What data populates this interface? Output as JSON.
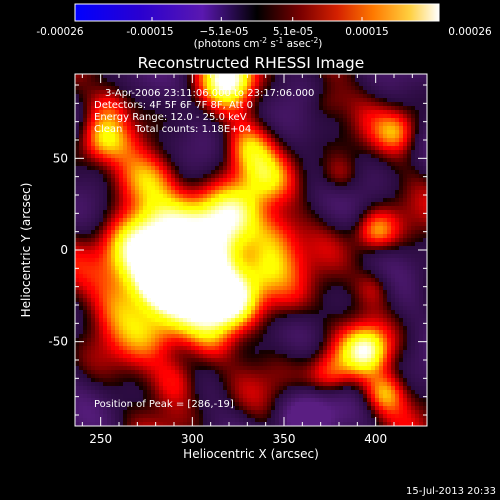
{
  "colorbar": {
    "tick_labels": [
      "-0.00026",
      "-0.00015",
      "−5.1e-05",
      "5.1e-05",
      "0.00015",
      "0.00026"
    ],
    "tick_values": [
      -0.00026,
      -0.00015,
      -5.1e-05,
      5.1e-05,
      0.00015,
      0.00026
    ],
    "range": [
      -0.00026,
      0.00026
    ],
    "units_prefix": "(photons cm",
    "units_sup1": "-2",
    "units_mid": " s",
    "units_sup2": "-1",
    "units_mid2": " asec",
    "units_sup3": "-2",
    "units_suffix": ")"
  },
  "title": "Reconstructed RHESSI Image",
  "info": {
    "line1": "3-Apr-2006 23:11:06.000 to 23:17:06.000",
    "line2": "Detectors: 4F 5F 6F 7F 8F, Att 0",
    "line3": "Energy Range: 12.0 - 25.0 keV",
    "line4": "Clean    Total counts: 1.18E+04"
  },
  "peak_label": "Position of Peak = [286,-19]",
  "footer_date": "15-Jul-2013 20:33",
  "chart_data": {
    "type": "heatmap",
    "title": "Reconstructed RHESSI Image",
    "xlabel": "Heliocentric X (arcsec)",
    "ylabel": "Heliocentric Y (arcsec)",
    "xlim": [
      236,
      428
    ],
    "ylim": [
      -96,
      96
    ],
    "xticks": [
      250,
      300,
      350,
      400
    ],
    "yticks": [
      -50,
      0,
      50
    ],
    "colormap": "hot",
    "blobs": [
      {
        "x": 286,
        "y": -18,
        "amp": 1.0,
        "w": 9
      },
      {
        "x": 278,
        "y": -12,
        "amp": 0.7,
        "w": 14
      },
      {
        "x": 265,
        "y": -2,
        "amp": 0.5,
        "w": 14
      },
      {
        "x": 280,
        "y": 10,
        "amp": 0.45,
        "w": 13
      },
      {
        "x": 310,
        "y": 15,
        "amp": 0.6,
        "w": 14
      },
      {
        "x": 325,
        "y": 20,
        "amp": 0.55,
        "w": 12
      },
      {
        "x": 318,
        "y": 2,
        "amp": 0.45,
        "w": 12
      },
      {
        "x": 305,
        "y": -10,
        "amp": 0.6,
        "w": 12
      },
      {
        "x": 320,
        "y": -28,
        "amp": 0.8,
        "w": 11
      },
      {
        "x": 300,
        "y": -30,
        "amp": 0.55,
        "w": 12
      },
      {
        "x": 340,
        "y": -12,
        "amp": 0.55,
        "w": 11
      },
      {
        "x": 345,
        "y": 8,
        "amp": 0.4,
        "w": 10
      },
      {
        "x": 352,
        "y": -30,
        "amp": 0.4,
        "w": 10
      },
      {
        "x": 262,
        "y": -30,
        "amp": 0.4,
        "w": 12
      },
      {
        "x": 280,
        "y": -45,
        "amp": 0.45,
        "w": 12
      },
      {
        "x": 292,
        "y": -70,
        "amp": 0.5,
        "w": 10
      },
      {
        "x": 310,
        "y": -50,
        "amp": 0.35,
        "w": 10
      },
      {
        "x": 265,
        "y": 35,
        "amp": 0.4,
        "w": 11
      },
      {
        "x": 282,
        "y": 42,
        "amp": 0.35,
        "w": 10
      },
      {
        "x": 330,
        "y": 55,
        "amp": 0.55,
        "w": 10
      },
      {
        "x": 340,
        "y": 38,
        "amp": 0.35,
        "w": 9
      },
      {
        "x": 320,
        "y": 95,
        "amp": 0.9,
        "w": 10
      },
      {
        "x": 250,
        "y": 60,
        "amp": 0.45,
        "w": 9
      },
      {
        "x": 395,
        "y": -55,
        "amp": 0.75,
        "w": 9
      },
      {
        "x": 375,
        "y": -68,
        "amp": 0.55,
        "w": 9
      },
      {
        "x": 405,
        "y": -78,
        "amp": 0.5,
        "w": 8
      },
      {
        "x": 400,
        "y": 10,
        "amp": 0.55,
        "w": 8
      },
      {
        "x": 380,
        "y": 40,
        "amp": 0.35,
        "w": 8
      },
      {
        "x": 412,
        "y": 65,
        "amp": 0.4,
        "w": 8
      },
      {
        "x": 372,
        "y": 80,
        "amp": 0.3,
        "w": 8
      },
      {
        "x": 400,
        "y": -20,
        "amp": 0.35,
        "w": 8
      },
      {
        "x": 256,
        "y": 80,
        "amp": 0.3,
        "w": 8
      },
      {
        "x": 362,
        "y": -92,
        "amp": -0.6,
        "w": 10
      }
    ]
  },
  "colors": {
    "background": "#000000",
    "foreground": "#ffffff"
  }
}
